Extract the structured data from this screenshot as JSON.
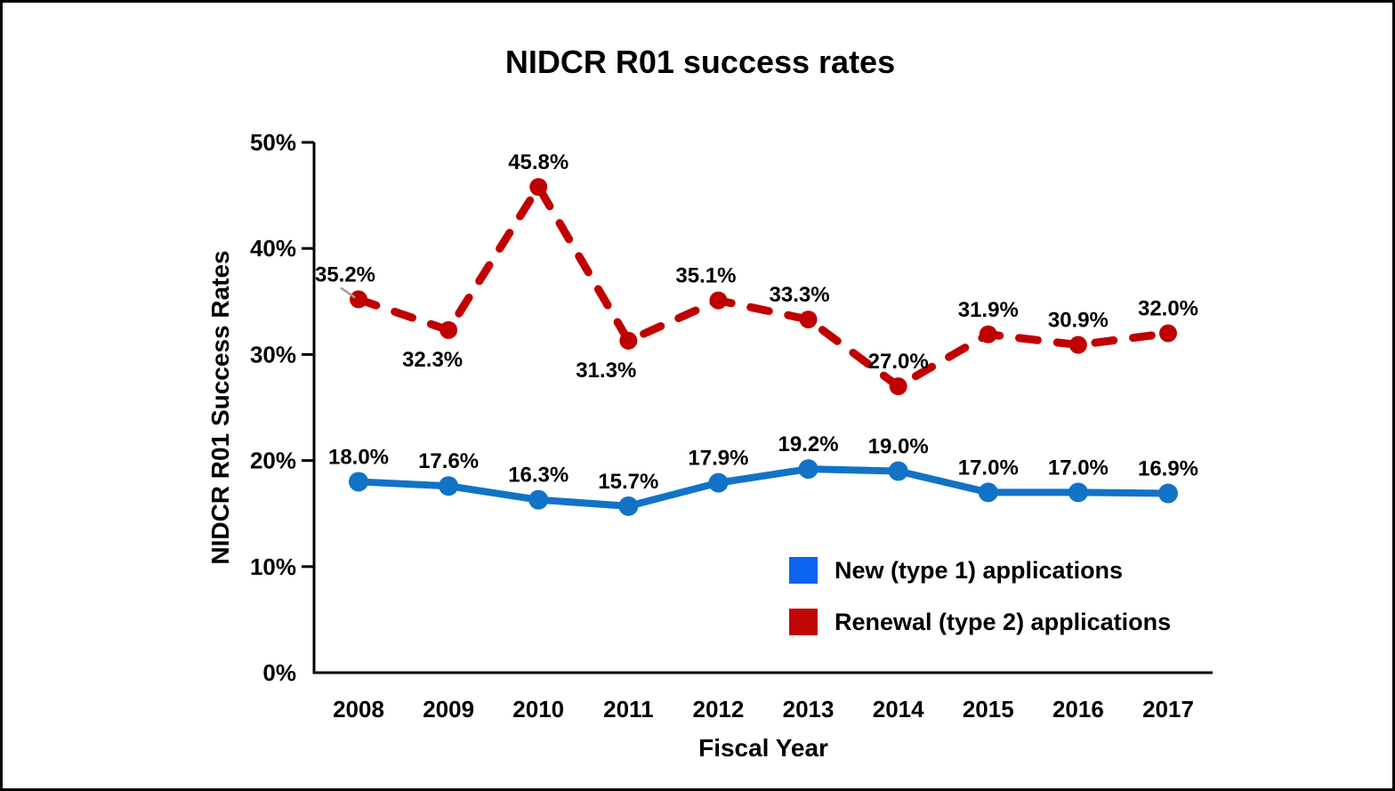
{
  "chart_data": {
    "type": "line",
    "title": "NIDCR R01 success rates",
    "xlabel": "Fiscal Year",
    "ylabel": "NIDCR R01 Success Rates",
    "categories": [
      "2008",
      "2009",
      "2010",
      "2011",
      "2012",
      "2013",
      "2014",
      "2015",
      "2016",
      "2017"
    ],
    "y_axis": {
      "ticks": [
        "0%",
        "10%",
        "20%",
        "30%",
        "40%",
        "50%"
      ],
      "min": 0,
      "max": 50
    },
    "grid": false,
    "legend_position": "inside-bottom-right",
    "axis_color": "#000000",
    "leader_line_color": "#a0a0a0",
    "series": [
      {
        "name": "New (type 1) applications",
        "line_color": "#1273C6",
        "legend_color": "#0B63F0",
        "style": "solid",
        "values": [
          18.0,
          17.6,
          16.3,
          15.7,
          17.9,
          19.2,
          19.0,
          17.0,
          17.0,
          16.9
        ],
        "point_labels": [
          {
            "text": "18.0%",
            "pos": "above"
          },
          {
            "text": "17.6%",
            "pos": "above"
          },
          {
            "text": "16.3%",
            "pos": "above"
          },
          {
            "text": "15.7%",
            "pos": "above"
          },
          {
            "text": "17.9%",
            "pos": "above"
          },
          {
            "text": "19.2%",
            "pos": "above"
          },
          {
            "text": "19.0%",
            "pos": "above"
          },
          {
            "text": "17.0%",
            "pos": "above"
          },
          {
            "text": "17.0%",
            "pos": "above"
          },
          {
            "text": "16.9%",
            "pos": "above"
          }
        ]
      },
      {
        "name": "Renewal (type 2) applications",
        "line_color": "#C00000",
        "legend_color": "#C00505",
        "style": "dashed",
        "values": [
          35.2,
          32.3,
          45.8,
          31.3,
          35.1,
          33.3,
          27.0,
          31.9,
          30.9,
          32.0
        ],
        "point_labels": [
          {
            "text": "35.2%",
            "pos": "above",
            "dx": -15,
            "leader": true
          },
          {
            "text": "32.3%",
            "pos": "below",
            "dx": -18
          },
          {
            "text": "45.8%",
            "pos": "above"
          },
          {
            "text": "31.3%",
            "pos": "below",
            "dx": -25
          },
          {
            "text": "35.1%",
            "pos": "above",
            "dx": -14
          },
          {
            "text": "33.3%",
            "pos": "above",
            "dx": -10
          },
          {
            "text": "27.0%",
            "pos": "above"
          },
          {
            "text": "31.9%",
            "pos": "above"
          },
          {
            "text": "30.9%",
            "pos": "above"
          },
          {
            "text": "32.0%",
            "pos": "above"
          }
        ]
      }
    ]
  }
}
